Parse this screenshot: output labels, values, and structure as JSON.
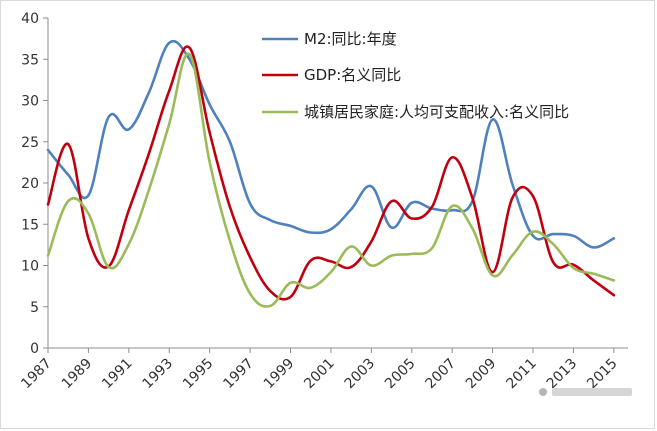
{
  "chart_data": {
    "type": "line",
    "title": "",
    "xlabel": "",
    "ylabel": "",
    "ylim": [
      0,
      40
    ],
    "yticks": [
      0,
      5,
      10,
      15,
      20,
      25,
      30,
      35,
      40
    ],
    "xlim": [
      1987,
      2015.7
    ],
    "xticks": [
      "1987",
      "1989",
      "1991",
      "1993",
      "1995",
      "1997",
      "1999",
      "2001",
      "2003",
      "2005",
      "2007",
      "2009",
      "2011",
      "2013",
      "2015"
    ],
    "grid": false,
    "legend_position": "top-right",
    "series": [
      {
        "name": "M2:同比:年度",
        "color": "#4f81bd",
        "points": [
          [
            1987,
            24.0
          ],
          [
            1988,
            21.0
          ],
          [
            1989,
            18.5
          ],
          [
            1990,
            28.0
          ],
          [
            1991,
            26.5
          ],
          [
            1992,
            31.0
          ],
          [
            1993,
            37.0
          ],
          [
            1994,
            35.0
          ],
          [
            1995,
            29.5
          ],
          [
            1996,
            25.0
          ],
          [
            1997,
            17.5
          ],
          [
            1998,
            15.5
          ],
          [
            1999,
            14.8
          ],
          [
            2000,
            14.0
          ],
          [
            2001,
            14.4
          ],
          [
            2002,
            16.8
          ],
          [
            2003,
            19.6
          ],
          [
            2004,
            14.6
          ],
          [
            2005,
            17.6
          ],
          [
            2006,
            16.9
          ],
          [
            2007,
            16.7
          ],
          [
            2008,
            17.8
          ],
          [
            2009,
            27.7
          ],
          [
            2010,
            19.7
          ],
          [
            2011,
            13.6
          ],
          [
            2012,
            13.8
          ],
          [
            2013,
            13.6
          ],
          [
            2014,
            12.2
          ],
          [
            2015,
            13.3
          ]
        ]
      },
      {
        "name": "GDP:名义同比",
        "color": "#c0000f",
        "points": [
          [
            1987,
            17.4
          ],
          [
            1988,
            24.7
          ],
          [
            1989,
            13.3
          ],
          [
            1990,
            9.9
          ],
          [
            1991,
            16.7
          ],
          [
            1992,
            23.6
          ],
          [
            1993,
            31.2
          ],
          [
            1994,
            36.4
          ],
          [
            1995,
            26.1
          ],
          [
            1996,
            17.1
          ],
          [
            1997,
            11.0
          ],
          [
            1998,
            6.9
          ],
          [
            1999,
            6.2
          ],
          [
            2000,
            10.6
          ],
          [
            2001,
            10.5
          ],
          [
            2002,
            9.8
          ],
          [
            2003,
            12.9
          ],
          [
            2004,
            17.8
          ],
          [
            2005,
            15.7
          ],
          [
            2006,
            17.1
          ],
          [
            2007,
            23.1
          ],
          [
            2008,
            18.2
          ],
          [
            2009,
            9.2
          ],
          [
            2010,
            18.3
          ],
          [
            2011,
            18.4
          ],
          [
            2012,
            10.4
          ],
          [
            2013,
            10.1
          ],
          [
            2014,
            8.2
          ],
          [
            2015,
            6.4
          ]
        ]
      },
      {
        "name": "城镇居民家庭:人均可支配收入:名义同比",
        "color": "#9bbb59",
        "points": [
          [
            1987,
            11.2
          ],
          [
            1988,
            17.8
          ],
          [
            1989,
            16.3
          ],
          [
            1990,
            9.8
          ],
          [
            1991,
            12.6
          ],
          [
            1992,
            19.2
          ],
          [
            1993,
            27.2
          ],
          [
            1994,
            35.6
          ],
          [
            1995,
            22.5
          ],
          [
            1996,
            13.0
          ],
          [
            1997,
            6.6
          ],
          [
            1998,
            5.1
          ],
          [
            1999,
            7.9
          ],
          [
            2000,
            7.3
          ],
          [
            2001,
            9.2
          ],
          [
            2002,
            12.3
          ],
          [
            2003,
            10.0
          ],
          [
            2004,
            11.2
          ],
          [
            2005,
            11.4
          ],
          [
            2006,
            12.1
          ],
          [
            2007,
            17.2
          ],
          [
            2008,
            14.5
          ],
          [
            2009,
            8.8
          ],
          [
            2010,
            11.3
          ],
          [
            2011,
            14.1
          ],
          [
            2012,
            12.6
          ],
          [
            2013,
            9.7
          ],
          [
            2014,
            9.0
          ],
          [
            2015,
            8.2
          ]
        ]
      }
    ]
  }
}
